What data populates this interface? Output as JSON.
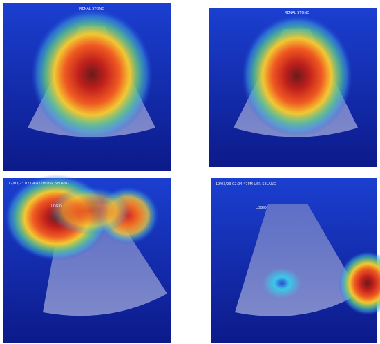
{
  "panels": [
    {
      "header": "RENAL STONE"
    },
    {
      "header": "RENAL STONE"
    },
    {
      "header": "12/03/23 02:04:47PM USR SELANG",
      "logo": "LOGIQ"
    },
    {
      "header": "12/03/23 02:04:47PM USR SELANG",
      "logo": "LOGIQ"
    }
  ]
}
